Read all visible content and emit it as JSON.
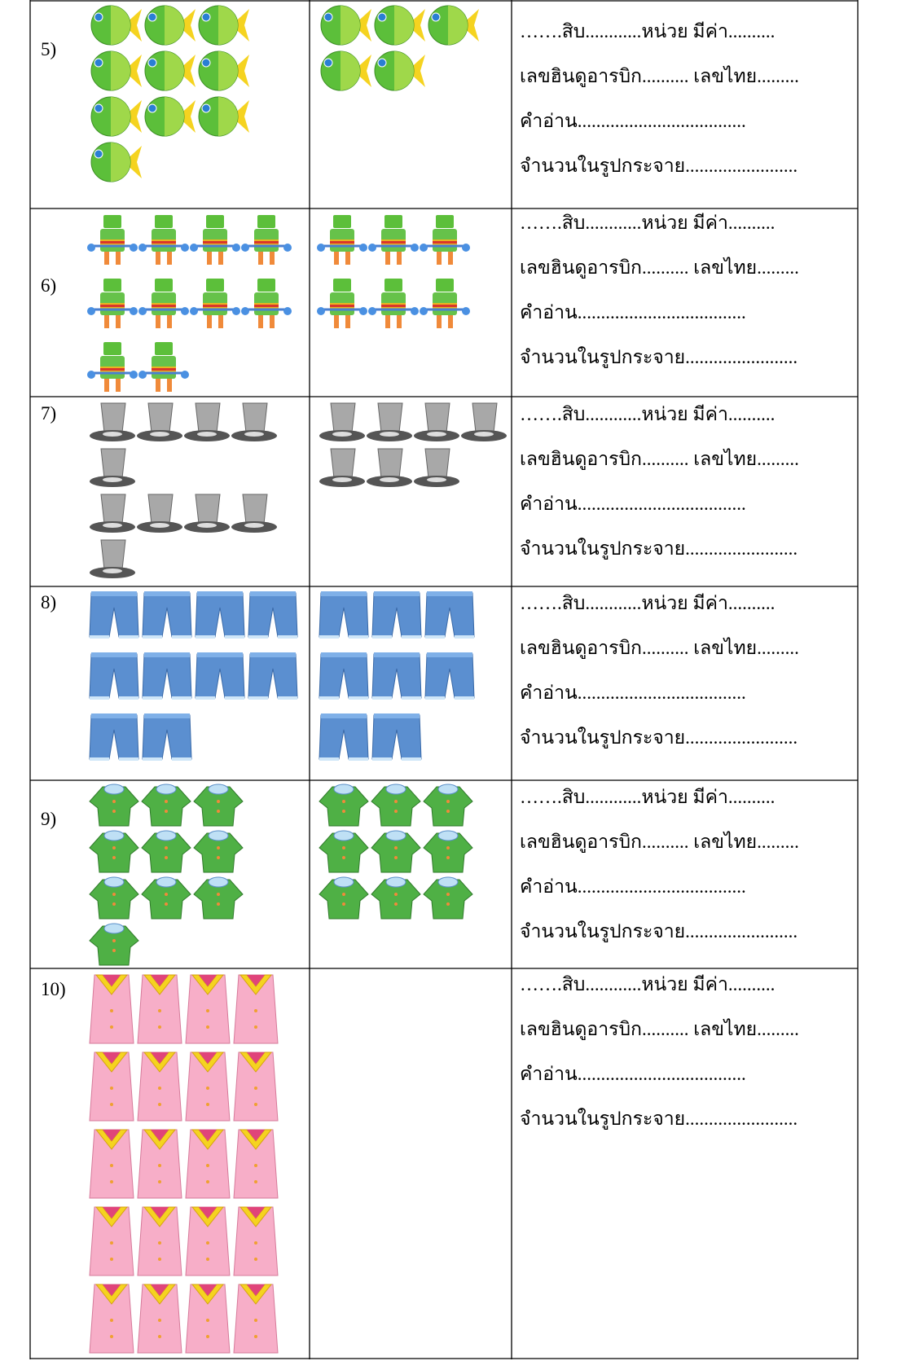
{
  "table": {
    "rows": [
      {
        "label": "5)",
        "lines": [
          "…….สิบ............หน่วย มีค่า..........",
          "เลขฮินดูอารบิก.......... เลขไทย.........",
          "คำอ่าน....................................",
          "จำนวนในรูปกระจาย........................"
        ]
      },
      {
        "label": "6)",
        "lines": [
          "…….สิบ............หน่วย มีค่า..........",
          "เลขฮินดูอารบิก.......... เลขไทย.........",
          "คำอ่าน....................................",
          "จำนวนในรูปกระจาย........................"
        ]
      },
      {
        "label": "7)",
        "lines": [
          "…….สิบ............หน่วย มีค่า..........",
          "เลขฮินดูอารบิก.......... เลขไทย.........",
          "คำอ่าน....................................",
          "จำนวนในรูปกระจาย........................"
        ]
      },
      {
        "label": "8)",
        "lines": [
          "…….สิบ............หน่วย มีค่า..........",
          "เลขฮินดูอารบิก.......... เลขไทย.........",
          "คำอ่าน....................................",
          "จำนวนในรูปกระจาย........................"
        ]
      },
      {
        "label": "9)",
        "lines": [
          "…….สิบ............หน่วย มีค่า..........",
          "เลขฮินดูอารบิก.......... เลขไทย.........",
          "คำอ่าน....................................",
          "จำนวนในรูปกระจาย........................"
        ]
      },
      {
        "label": "10)",
        "lines": [
          "…….สิบ............หน่วย มีค่า..........",
          "เลขฮินดูอารบิก.......... เลขไทย.........",
          "คำอ่าน....................................",
          "จำนวนในรูปกระจาย........................"
        ]
      }
    ]
  }
}
